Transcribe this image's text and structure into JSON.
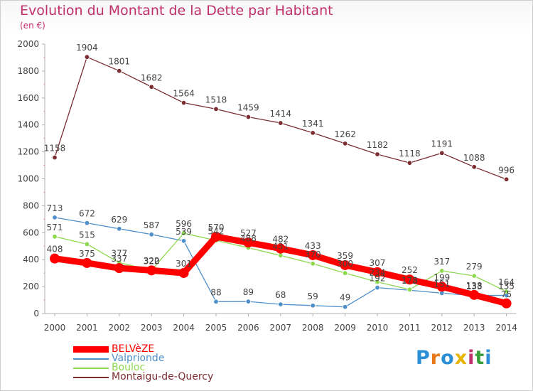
{
  "header": {
    "title": "Evolution du Montant de la Dette par Habitant",
    "unit": "(en €)"
  },
  "logo": {
    "text": "Proxiti",
    "colors": [
      "#2a8fd6",
      "#e67817",
      "#2a8fd6",
      "#e8b400",
      "#c0306a",
      "#3a9e3a",
      "#2a8fd6"
    ]
  },
  "chart_data": {
    "type": "line",
    "title": "Evolution du Montant de la Dette par Habitant",
    "subtitle": "(en €)",
    "x": [
      "2000",
      "2001",
      "2002",
      "2003",
      "2004",
      "2005",
      "2006",
      "2007",
      "2008",
      "2009",
      "2010",
      "2011",
      "2012",
      "2013",
      "2014"
    ],
    "ylim": [
      0,
      2000
    ],
    "yticks": [
      0,
      200,
      400,
      600,
      800,
      1000,
      1200,
      1400,
      1600,
      1800,
      2000
    ],
    "grid": false,
    "legend_position": "bottom-left",
    "series": [
      {
        "name": "BELVèZE",
        "color": "#ff0000",
        "style": "thick",
        "values": [
          408,
          375,
          337,
          320,
          301,
          570,
          527,
          482,
          433,
          359,
          307,
          252,
          199,
          138,
          75
        ],
        "labels": [
          "408",
          "375",
          "337",
          "320",
          "301",
          "570",
          "527",
          "482",
          "433",
          "359",
          "307",
          "252",
          "199",
          "138",
          "75"
        ]
      },
      {
        "name": "Valprionde",
        "color": "#4f8fc9",
        "style": "thin",
        "values": [
          713,
          672,
          629,
          587,
          539,
          88,
          89,
          68,
          59,
          49,
          192,
          173,
          151,
          133,
          135
        ],
        "labels": [
          "713",
          "672",
          "629",
          "587",
          "539",
          "88",
          "89",
          "68",
          "59",
          "49",
          "192",
          "173",
          "151",
          "133",
          "135"
        ]
      },
      {
        "name": "Bouloc",
        "color": "#8ed84f",
        "style": "thin",
        "values": [
          571,
          515,
          377,
          322,
          596,
          542,
          488,
          431,
          370,
          300,
          234,
          178,
          317,
          279,
          164
        ],
        "labels": [
          "571",
          "515",
          "377",
          "322",
          "596",
          "542",
          "488",
          "431",
          "370",
          "300",
          "234",
          "178",
          "317",
          "279",
          "164"
        ]
      },
      {
        "name": "Montaigu-de-Quercy",
        "color": "#7b2d32",
        "style": "thin",
        "values": [
          1158,
          1904,
          1801,
          1682,
          1564,
          1518,
          1459,
          1414,
          1341,
          1262,
          1182,
          1118,
          1191,
          1088,
          996
        ],
        "labels": [
          "1158",
          "1904",
          "1801",
          "1682",
          "1564",
          "1518",
          "1459",
          "1414",
          "1341",
          "1262",
          "1182",
          "1118",
          "1191",
          "1088",
          "996"
        ]
      }
    ]
  }
}
